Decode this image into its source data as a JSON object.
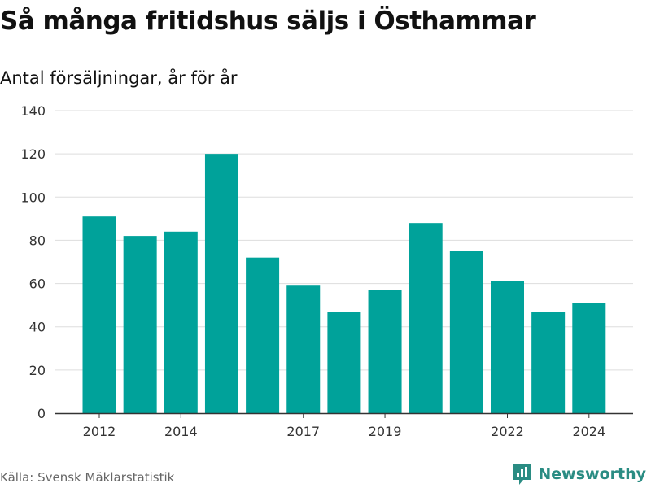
{
  "title": "Så många fritidshus säljs i Östhammar",
  "subtitle": "Antal försäljningar, år för år",
  "source": "Källa: Svensk Mäklarstatistik",
  "brand": {
    "name": "Newsworthy",
    "icon": "newsworthy-logo-icon",
    "color": "#2a8c83"
  },
  "colors": {
    "bar": "#00a29a",
    "grid": "#dddddd",
    "axis": "#333333"
  },
  "chart_data": {
    "type": "bar",
    "title": "Så många fritidshus säljs i Östhammar",
    "subtitle": "Antal försäljningar, år för år",
    "xlabel": "",
    "ylabel": "",
    "categories": [
      2012,
      2013,
      2014,
      2015,
      2016,
      2017,
      2018,
      2019,
      2020,
      2021,
      2022,
      2023,
      2024
    ],
    "values": [
      91,
      82,
      84,
      120,
      72,
      59,
      47,
      57,
      88,
      75,
      61,
      47,
      51
    ],
    "ylim": [
      0,
      140
    ],
    "yticks": [
      0,
      20,
      40,
      60,
      80,
      100,
      120,
      140
    ],
    "xtick_labels": [
      "2012",
      "2014",
      "2017",
      "2019",
      "2022",
      "2024"
    ],
    "grid": true,
    "legend": "none"
  }
}
